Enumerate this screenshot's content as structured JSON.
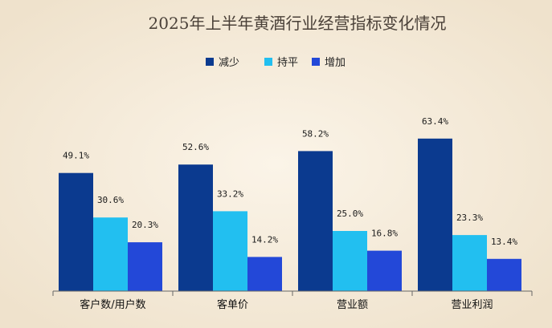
{
  "chart_data": {
    "type": "bar",
    "title": "2025年上半年黄酒行业经营指标变化情况",
    "categories": [
      "客户数/用户数",
      "客单价",
      "营业额",
      "营业利润"
    ],
    "series": [
      {
        "name": "减少",
        "color": "#0b3a8f",
        "values": [
          49.1,
          52.6,
          58.2,
          63.4
        ]
      },
      {
        "name": "持平",
        "color": "#22bff0",
        "values": [
          30.6,
          33.2,
          25.0,
          23.3
        ]
      },
      {
        "name": "增加",
        "color": "#2348d8",
        "values": [
          20.3,
          14.2,
          16.8,
          13.4
        ]
      }
    ],
    "value_suffix": "%",
    "ylim": [
      0,
      70
    ],
    "legend": "top-center",
    "grid": false,
    "xlabel": "",
    "ylabel": ""
  }
}
